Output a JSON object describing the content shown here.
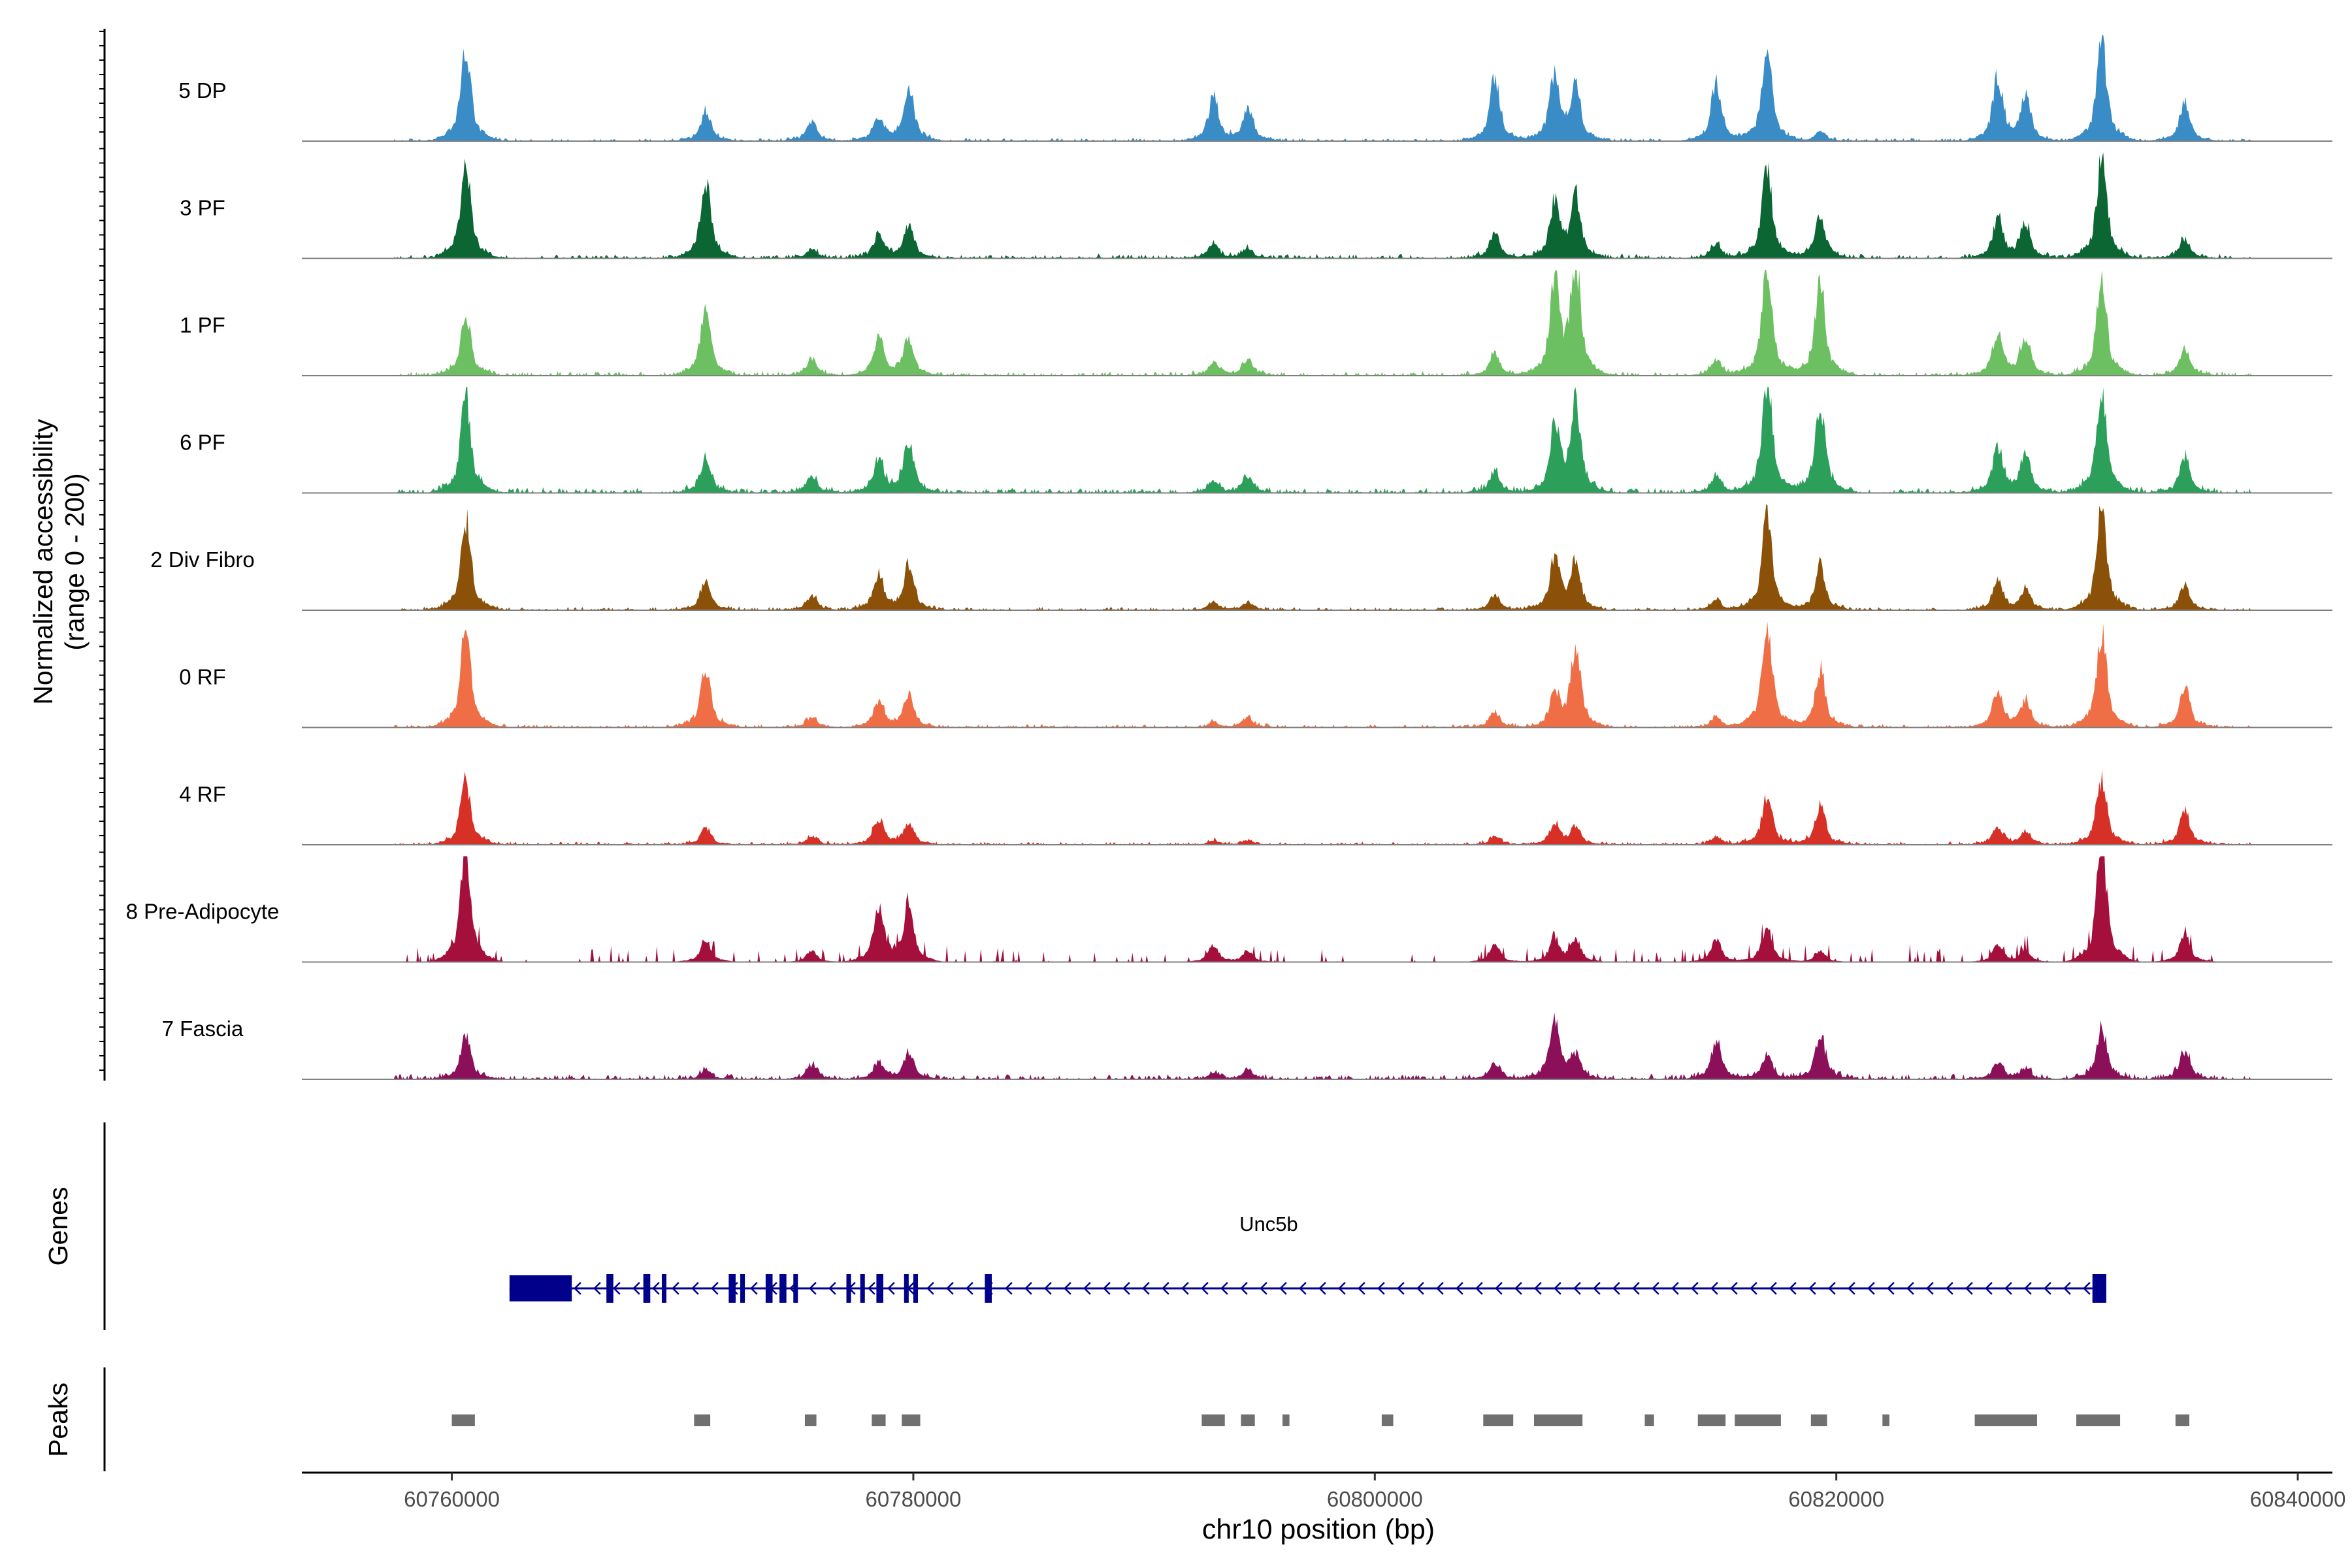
{
  "chart_data": {
    "type": "area",
    "title": "",
    "xlabel": "chr10 position (bp)",
    "ylabel_line1": "Normalized accessibility",
    "ylabel_line2": "(range 0 - 200)",
    "xlim": [
      60753500,
      60841500
    ],
    "xticks": [
      60760000,
      60780000,
      60800000,
      60820000,
      60840000
    ],
    "xtick_labels": [
      "60760000",
      "60780000",
      "60800000",
      "60820000",
      "60840000"
    ],
    "ylim": [
      0,
      200
    ],
    "track_extent": [
      60757500,
      60838000
    ],
    "tracks": [
      {
        "name": "5 DP",
        "color": "#3a8cc6",
        "scale": 0.78,
        "noise": 0.03,
        "sparse": false
      },
      {
        "name": "3 PF",
        "color": "#0b6633",
        "scale": 0.8,
        "noise": 0.04,
        "sparse": false
      },
      {
        "name": "1 PF",
        "color": "#6cc062",
        "scale": 0.88,
        "noise": 0.04,
        "sparse": false
      },
      {
        "name": "6 PF",
        "color": "#2ca05a",
        "scale": 0.92,
        "noise": 0.05,
        "sparse": false
      },
      {
        "name": "2 Div Fibro",
        "color": "#8b5109",
        "scale": 0.82,
        "noise": 0.03,
        "sparse": false
      },
      {
        "name": "0 RF",
        "color": "#f06e46",
        "scale": 0.85,
        "noise": 0.03,
        "sparse": false
      },
      {
        "name": "4 RF",
        "color": "#d73026",
        "scale": 0.7,
        "noise": 0.03,
        "sparse": false
      },
      {
        "name": "8 Pre-Adipocyte",
        "color": "#a50f3c",
        "scale": 0.95,
        "noise": 0.1,
        "sparse": true
      },
      {
        "name": "7 Fascia",
        "color": "#8c0f5a",
        "scale": 0.55,
        "noise": 0.05,
        "sparse": false
      }
    ],
    "signal_peaks": [
      {
        "pos": 60760600,
        "heights": [
          0.95,
          0.95,
          0.55,
          0.85,
          0.9,
          0.95,
          0.75,
          1.0,
          0.65
        ]
      },
      {
        "pos": 60771000,
        "heights": [
          0.3,
          0.8,
          0.6,
          0.3,
          0.3,
          0.55,
          0.2,
          0.2,
          0.15
        ]
      },
      {
        "pos": 60775600,
        "heights": [
          0.2,
          0.1,
          0.15,
          0.15,
          0.15,
          0.1,
          0.1,
          0.1,
          0.2
        ]
      },
      {
        "pos": 60778500,
        "heights": [
          0.25,
          0.25,
          0.35,
          0.3,
          0.35,
          0.25,
          0.3,
          0.5,
          0.25
        ]
      },
      {
        "pos": 60779800,
        "heights": [
          0.55,
          0.35,
          0.35,
          0.45,
          0.45,
          0.3,
          0.25,
          0.5,
          0.4
        ]
      },
      {
        "pos": 60793000,
        "heights": [
          0.45,
          0.15,
          0.12,
          0.1,
          0.08,
          0.05,
          0.05,
          0.15,
          0.1
        ]
      },
      {
        "pos": 60794500,
        "heights": [
          0.35,
          0.1,
          0.15,
          0.15,
          0.08,
          0.1,
          0.05,
          0.1,
          0.15
        ]
      },
      {
        "pos": 60805200,
        "heights": [
          0.65,
          0.25,
          0.2,
          0.2,
          0.15,
          0.15,
          0.1,
          0.15,
          0.25
        ]
      },
      {
        "pos": 60807800,
        "heights": [
          0.7,
          0.55,
          0.85,
          0.55,
          0.5,
          0.3,
          0.25,
          0.2,
          0.85
        ]
      },
      {
        "pos": 60808700,
        "heights": [
          0.55,
          0.6,
          1.0,
          0.8,
          0.45,
          0.75,
          0.2,
          0.2,
          0.35
        ]
      },
      {
        "pos": 60814800,
        "heights": [
          0.6,
          0.15,
          0.15,
          0.15,
          0.1,
          0.1,
          0.1,
          0.2,
          0.55
        ]
      },
      {
        "pos": 60817000,
        "heights": [
          0.95,
          0.9,
          1.0,
          1.0,
          0.95,
          1.0,
          0.55,
          0.3,
          0.35
        ]
      },
      {
        "pos": 60819300,
        "heights": [
          0.1,
          0.45,
          0.85,
          0.8,
          0.45,
          0.55,
          0.45,
          0.1,
          0.65
        ]
      },
      {
        "pos": 60827000,
        "heights": [
          0.65,
          0.4,
          0.4,
          0.4,
          0.3,
          0.35,
          0.2,
          0.15,
          0.25
        ]
      },
      {
        "pos": 60828200,
        "heights": [
          0.45,
          0.35,
          0.35,
          0.35,
          0.2,
          0.25,
          0.15,
          0.1,
          0.15
        ]
      },
      {
        "pos": 60831500,
        "heights": [
          1.0,
          1.0,
          0.85,
          0.95,
          1.0,
          0.9,
          0.75,
          1.0,
          0.75
        ]
      },
      {
        "pos": 60835100,
        "heights": [
          0.4,
          0.2,
          0.25,
          0.3,
          0.25,
          0.4,
          0.4,
          0.25,
          0.4
        ]
      }
    ],
    "gene": {
      "name": "Unc5b",
      "start": 60762500,
      "end": 60831700,
      "strand": "-",
      "color": "#00008b",
      "exons": [
        [
          60762500,
          60765200
        ],
        [
          60766700,
          60767000
        ],
        [
          60768300,
          60768600
        ],
        [
          60769100,
          60769300
        ],
        [
          60772000,
          60772300
        ],
        [
          60772500,
          60772700
        ],
        [
          60773600,
          60773900
        ],
        [
          60774200,
          60774500
        ],
        [
          60774800,
          60775000
        ],
        [
          60777100,
          60777300
        ],
        [
          60777700,
          60777900
        ],
        [
          60778400,
          60778700
        ],
        [
          60779600,
          60779800
        ],
        [
          60780000,
          60780200
        ],
        [
          60783100,
          60783400
        ],
        [
          60831100,
          60831700
        ]
      ]
    },
    "peaks": {
      "color": "#707070",
      "regions": [
        [
          60760000,
          60761000
        ],
        [
          60770500,
          60771200
        ],
        [
          60775300,
          60775800
        ],
        [
          60778200,
          60778800
        ],
        [
          60779500,
          60780300
        ],
        [
          60792500,
          60793500
        ],
        [
          60794200,
          60794800
        ],
        [
          60796000,
          60796300
        ],
        [
          60800300,
          60800800
        ],
        [
          60804700,
          60806000
        ],
        [
          60806900,
          60809000
        ],
        [
          60811700,
          60812100
        ],
        [
          60814000,
          60815200
        ],
        [
          60815600,
          60817600
        ],
        [
          60818900,
          60819600
        ],
        [
          60822000,
          60822300
        ],
        [
          60826000,
          60828700
        ],
        [
          60830400,
          60832300
        ],
        [
          60834700,
          60835300
        ]
      ]
    },
    "panel_labels": {
      "genes": "Genes",
      "peaks": "Peaks"
    }
  }
}
